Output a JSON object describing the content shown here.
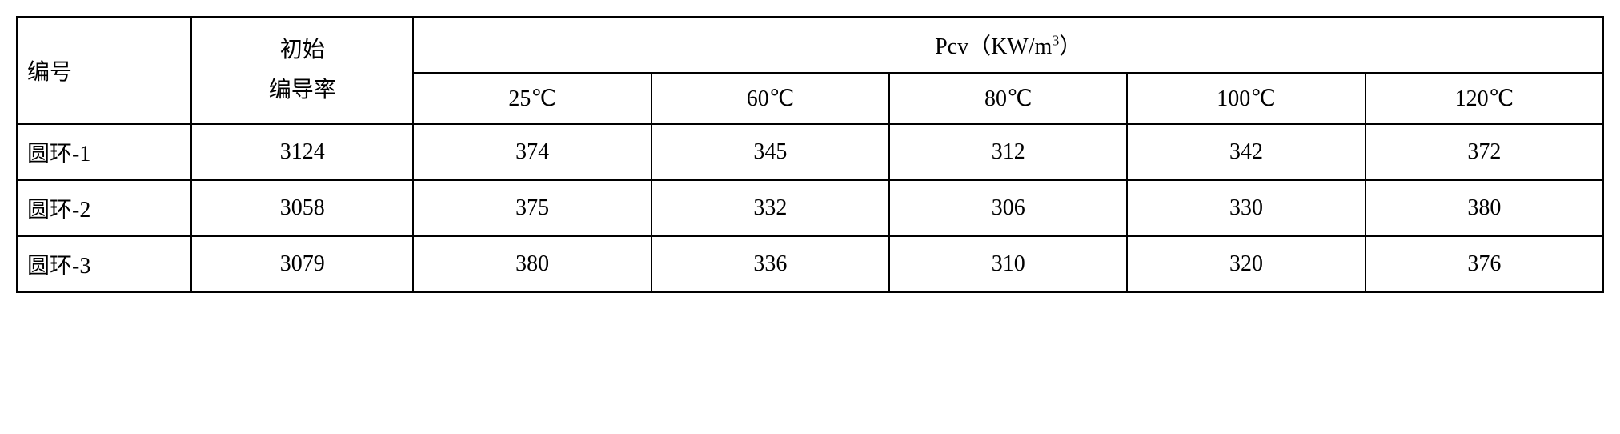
{
  "table": {
    "type": "table",
    "background_color": "#ffffff",
    "border_color": "#000000",
    "text_color": "#000000",
    "font_family": "SimSun",
    "font_size": 28,
    "border_width": 2,
    "headers": {
      "id_label": "编号",
      "init_label_line1": "初始",
      "init_label_line2": "编导率",
      "pcv_label": "Pcv（KW/m³）",
      "temp_columns": [
        "25℃",
        "60℃",
        "80℃",
        "100℃",
        "120℃"
      ]
    },
    "rows": [
      {
        "id": "圆环-1",
        "init": "3124",
        "values": [
          "374",
          "345",
          "312",
          "342",
          "372"
        ]
      },
      {
        "id": "圆环-2",
        "init": "3058",
        "values": [
          "375",
          "332",
          "306",
          "330",
          "380"
        ]
      },
      {
        "id": "圆环-3",
        "init": "3079",
        "values": [
          "380",
          "336",
          "310",
          "320",
          "376"
        ]
      }
    ],
    "column_widths": {
      "id": "11%",
      "init": "14%",
      "temp": "15%"
    }
  }
}
